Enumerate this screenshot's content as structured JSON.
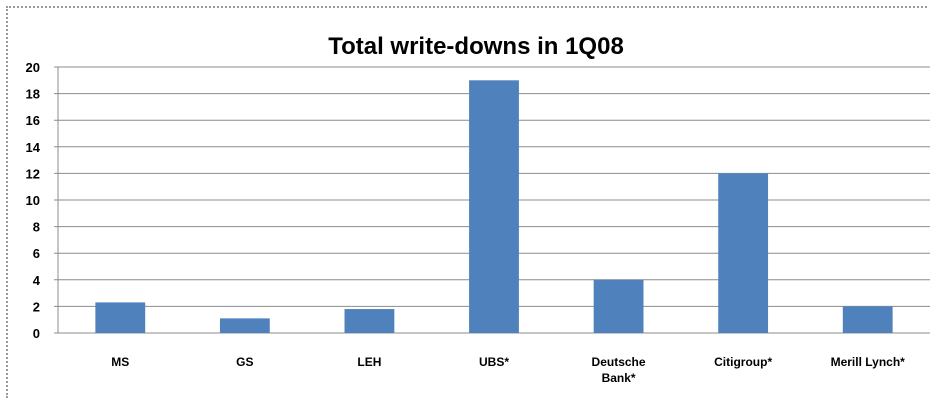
{
  "chart_data": {
    "type": "bar",
    "title": "Total write-downs in 1Q08",
    "categories": [
      "MS",
      "GS",
      "LEH",
      "UBS*",
      "Deutsche Bank*",
      "Citigroup*",
      "Merill Lynch*"
    ],
    "category_lines": [
      [
        "MS"
      ],
      [
        "GS"
      ],
      [
        "LEH"
      ],
      [
        "UBS*"
      ],
      [
        "Deutsche",
        "Bank*"
      ],
      [
        "Citigroup*"
      ],
      [
        "Merill Lynch*"
      ]
    ],
    "values": [
      2.3,
      1.1,
      1.8,
      19,
      4,
      12,
      2
    ],
    "ylim": [
      0,
      20
    ],
    "yticks": [
      0,
      2,
      4,
      6,
      8,
      10,
      12,
      14,
      16,
      18,
      20
    ],
    "xlabel": "",
    "ylabel": "",
    "grid": true,
    "bar_color": "#4f81bd"
  }
}
